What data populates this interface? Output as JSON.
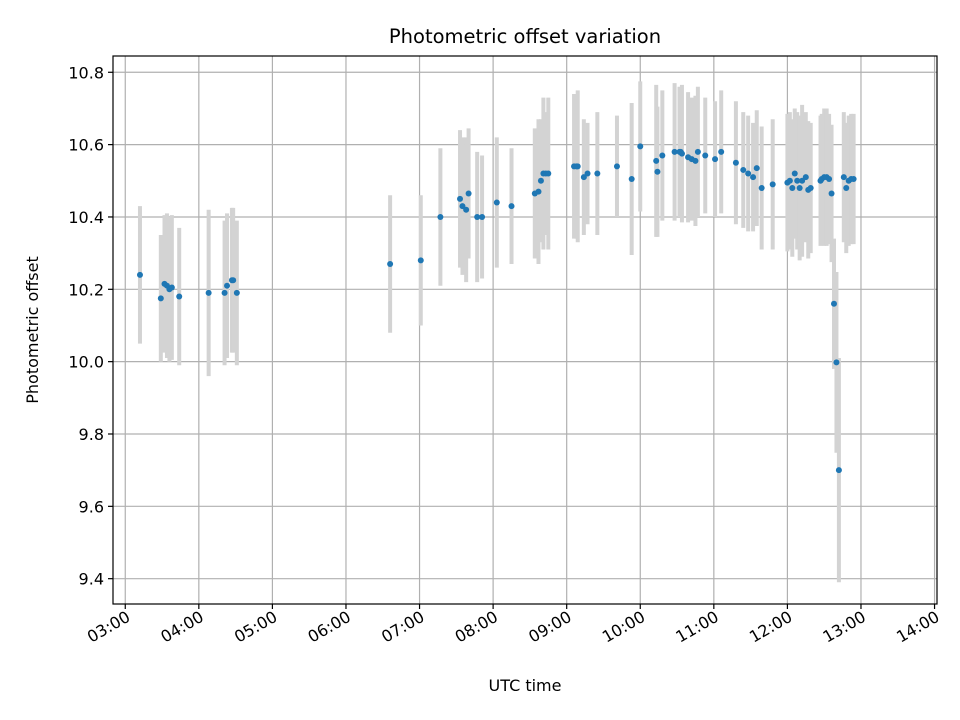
{
  "chart_data": {
    "type": "scatter",
    "title": "Photometric offset variation",
    "xlabel": "UTC time",
    "ylabel": "Photometric offset",
    "x_unit": "UTC",
    "xlim": [
      "02:50",
      "14:02"
    ],
    "ylim": [
      9.33,
      10.845
    ],
    "grid": true,
    "x_ticks": [
      "03:00",
      "04:00",
      "05:00",
      "06:00",
      "07:00",
      "08:00",
      "09:00",
      "10:00",
      "11:00",
      "12:00",
      "13:00",
      "14:00"
    ],
    "y_ticks": [
      "9.4",
      "9.6",
      "9.8",
      "10.0",
      "10.2",
      "10.4",
      "10.6",
      "10.8"
    ],
    "colors": {
      "points": "#1f77b4",
      "errorbars": "#d3d3d3",
      "grid": "#b0b0b0"
    },
    "series": [
      {
        "x": [
          "03:12",
          "03:29",
          "03:32",
          "03:34",
          "03:36",
          "03:38",
          "03:44",
          "04:08",
          "04:21",
          "04:23",
          "04:27",
          "04:28",
          "04:31",
          "06:36",
          "07:01",
          "07:17",
          "07:33",
          "07:35",
          "07:38",
          "07:40",
          "07:47",
          "07:51",
          "08:03",
          "08:15",
          "08:34",
          "08:37",
          "08:39",
          "08:41",
          "08:43",
          "08:45",
          "09:06",
          "09:08",
          "09:09",
          "09:14",
          "09:17",
          "09:25",
          "09:41",
          "09:53",
          "10:00",
          "10:13",
          "10:14",
          "10:18",
          "10:28",
          "10:32",
          "10:33",
          "10:34",
          "10:39",
          "10:42",
          "10:45",
          "10:47",
          "10:53",
          "11:01",
          "11:06",
          "11:18",
          "11:24",
          "11:28",
          "11:32",
          "11:35",
          "11:39",
          "11:48",
          "12:00",
          "12:02",
          "12:04",
          "12:06",
          "12:08",
          "12:10",
          "12:12",
          "12:15",
          "12:17",
          "12:19",
          "12:27",
          "12:28",
          "12:30",
          "12:32",
          "12:34",
          "12:36",
          "12:38",
          "12:40",
          "12:42",
          "12:46",
          "12:48",
          "12:50",
          "12:52",
          "12:54"
        ],
        "y": [
          10.24,
          10.175,
          10.215,
          10.21,
          10.2,
          10.205,
          10.18,
          10.19,
          10.19,
          10.21,
          10.225,
          10.225,
          10.19,
          10.27,
          10.28,
          10.4,
          10.45,
          10.43,
          10.42,
          10.465,
          10.4,
          10.4,
          10.44,
          10.43,
          10.465,
          10.47,
          10.5,
          10.52,
          10.52,
          10.52,
          10.54,
          10.54,
          10.54,
          10.51,
          10.52,
          10.52,
          10.54,
          10.505,
          10.595,
          10.555,
          10.525,
          10.57,
          10.58,
          10.58,
          10.58,
          10.575,
          10.565,
          10.56,
          10.555,
          10.58,
          10.57,
          10.56,
          10.58,
          10.55,
          10.53,
          10.52,
          10.51,
          10.535,
          10.48,
          10.49,
          10.495,
          10.5,
          10.48,
          10.52,
          10.5,
          10.48,
          10.5,
          10.51,
          10.475,
          10.48,
          10.5,
          10.505,
          10.51,
          10.51,
          10.505,
          10.465,
          10.16,
          9.998,
          9.7,
          10.51,
          10.48,
          10.5,
          10.505,
          10.505
        ],
        "err": [
          0.19,
          0.175,
          0.19,
          0.2,
          0.2,
          0.2,
          0.19,
          0.23,
          0.2,
          0.2,
          0.2,
          0.2,
          0.2,
          0.19,
          0.18,
          0.19,
          0.19,
          0.19,
          0.2,
          0.18,
          0.18,
          0.17,
          0.18,
          0.16,
          0.18,
          0.2,
          0.17,
          0.21,
          0.17,
          0.21,
          0.2,
          0.2,
          0.21,
          0.16,
          0.14,
          0.17,
          0.14,
          0.21,
          0.18,
          0.21,
          0.18,
          0.18,
          0.19,
          0.18,
          0.17,
          0.19,
          0.18,
          0.17,
          0.18,
          0.18,
          0.16,
          0.16,
          0.17,
          0.17,
          0.16,
          0.16,
          0.15,
          0.16,
          0.17,
          0.18,
          0.19,
          0.19,
          0.19,
          0.18,
          0.19,
          0.2,
          0.21,
          0.18,
          0.19,
          0.18,
          0.18,
          0.18,
          0.19,
          0.19,
          0.18,
          0.19,
          0.18,
          0.25,
          0.31,
          0.18,
          0.18,
          0.18,
          0.18,
          0.18
        ]
      }
    ]
  }
}
